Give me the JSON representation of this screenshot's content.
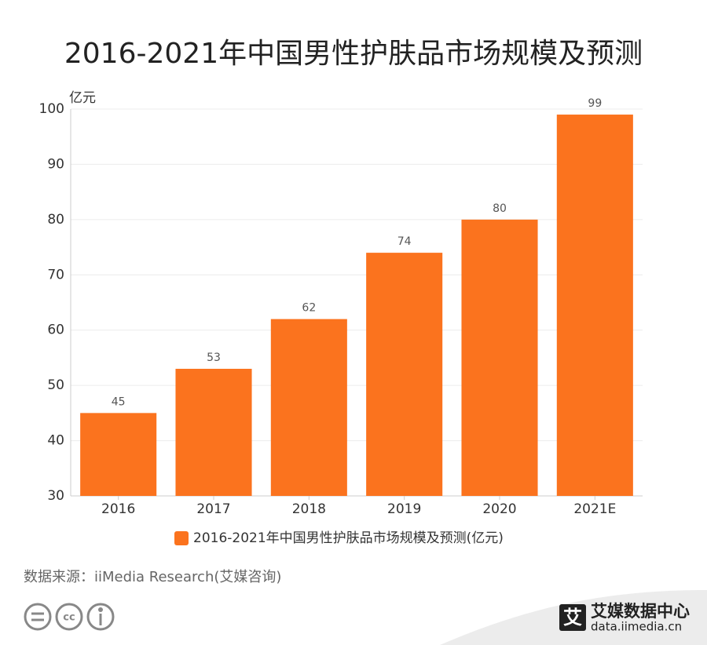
{
  "chart_data": {
    "type": "bar",
    "title": "2016-2021年中国男性护肤品市场规模及预测",
    "y_label": "亿元",
    "categories": [
      "2016",
      "2017",
      "2018",
      "2019",
      "2020",
      "2021E"
    ],
    "series": [
      {
        "name": "2016-2021年中国男性护肤品市场规模及预测(亿元)",
        "color": "#fb731e",
        "values": [
          45,
          53,
          62,
          74,
          80,
          99
        ]
      }
    ],
    "ylim": [
      30,
      100
    ],
    "yticks": [
      30,
      40,
      50,
      60,
      70,
      80,
      90,
      100
    ],
    "grid": true,
    "legend": "bottom",
    "source": "数据来源：iiMedia Research(艾媒咨询)"
  },
  "footer": {
    "license": "cc",
    "logo_mark": "艾",
    "logo_name": "艾媒数据中心",
    "logo_url": "data.iimedia.cn"
  }
}
